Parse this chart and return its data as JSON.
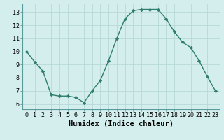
{
  "x": [
    0,
    1,
    2,
    3,
    4,
    5,
    6,
    7,
    8,
    9,
    10,
    11,
    12,
    13,
    14,
    15,
    16,
    17,
    18,
    19,
    20,
    21,
    22,
    23
  ],
  "y": [
    10,
    9.2,
    8.5,
    6.7,
    6.6,
    6.6,
    6.5,
    6.1,
    7.0,
    7.8,
    9.3,
    11.0,
    12.5,
    13.1,
    13.2,
    13.2,
    13.2,
    12.5,
    11.5,
    10.7,
    10.3,
    9.3,
    8.1,
    7.0
  ],
  "line_color": "#2e7d6e",
  "marker": "D",
  "marker_size": 2.2,
  "bg_color": "#d4eded",
  "grid_color": "#b8d8d8",
  "xlabel": "Humidex (Indice chaleur)",
  "xlim": [
    -0.5,
    23.5
  ],
  "ylim": [
    5.6,
    13.6
  ],
  "yticks": [
    6,
    7,
    8,
    9,
    10,
    11,
    12,
    13
  ],
  "xticks": [
    0,
    1,
    2,
    3,
    4,
    5,
    6,
    7,
    8,
    9,
    10,
    11,
    12,
    13,
    14,
    15,
    16,
    17,
    18,
    19,
    20,
    21,
    22,
    23
  ],
  "tick_label_fontsize": 6.0,
  "xlabel_fontsize": 7.5,
  "line_width": 1.0
}
